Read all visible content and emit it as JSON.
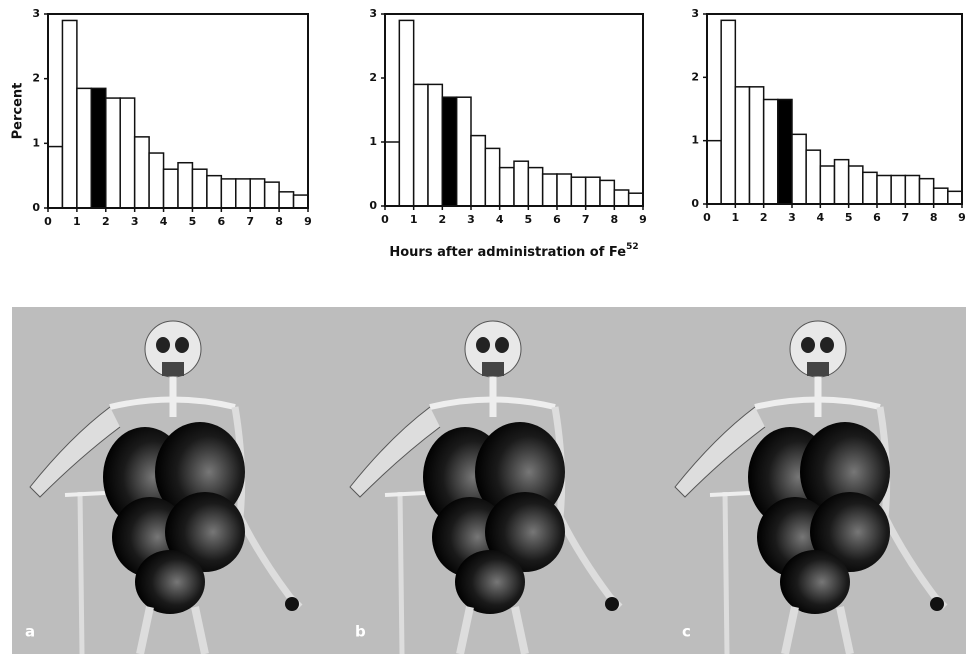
{
  "chart_data": [
    {
      "type": "histogram",
      "ylabel": "Percent",
      "bins": [
        0,
        0.5,
        1,
        1.5,
        2,
        2.5,
        3,
        3.5,
        4,
        4.5,
        5,
        5.5,
        6,
        6.5,
        7,
        7.5,
        8,
        8.5,
        9
      ],
      "values": [
        0.95,
        2.9,
        1.85,
        1.85,
        1.7,
        1.7,
        1.1,
        0.85,
        0.6,
        0.7,
        0.6,
        0.5,
        0.45,
        0.45,
        0.45,
        0.4,
        0.25,
        0.2
      ],
      "colors": [
        "#fff",
        "#fff",
        "#fff",
        "#000",
        "#fff",
        "#fff",
        "#fff",
        "#fff",
        "#fff",
        "#fff",
        "#fff",
        "#fff",
        "#fff",
        "#fff",
        "#fff",
        "#fff",
        "#fff",
        "#fff"
      ],
      "xlim": [
        0,
        9
      ],
      "xticks": [
        0,
        1,
        2,
        3,
        4,
        5,
        6,
        7,
        8,
        9
      ],
      "ylim": [
        0,
        3
      ],
      "yticks": [
        0,
        1,
        2,
        3
      ]
    },
    {
      "type": "histogram",
      "xlabel": "Hours after administration of Fe",
      "xlabel_superscript": "52",
      "bins": [
        0,
        0.5,
        1,
        1.5,
        2,
        2.5,
        3,
        3.5,
        4,
        4.5,
        5,
        5.5,
        6,
        6.5,
        7,
        7.5,
        8,
        8.5,
        9
      ],
      "values": [
        1.0,
        2.9,
        1.9,
        1.9,
        1.7,
        1.7,
        1.1,
        0.9,
        0.6,
        0.7,
        0.6,
        0.5,
        0.5,
        0.45,
        0.45,
        0.4,
        0.25,
        0.2
      ],
      "colors": [
        "#fff",
        "#fff",
        "#fff",
        "#fff",
        "#000",
        "#fff",
        "#fff",
        "#fff",
        "#fff",
        "#fff",
        "#fff",
        "#fff",
        "#fff",
        "#fff",
        "#fff",
        "#fff",
        "#fff",
        "#fff"
      ],
      "xlim": [
        0,
        9
      ],
      "xticks": [
        0,
        1,
        2,
        3,
        4,
        5,
        6,
        7,
        8,
        9
      ],
      "ylim": [
        0,
        3
      ],
      "yticks": [
        0,
        1,
        2,
        3
      ]
    },
    {
      "type": "histogram",
      "bins": [
        0,
        0.5,
        1,
        1.5,
        2,
        2.5,
        3,
        3.5,
        4,
        4.5,
        5,
        5.5,
        6,
        6.5,
        7,
        7.5,
        8,
        8.5,
        9
      ],
      "values": [
        1.0,
        2.9,
        1.85,
        1.85,
        1.65,
        1.65,
        1.1,
        0.85,
        0.6,
        0.7,
        0.6,
        0.5,
        0.45,
        0.45,
        0.45,
        0.4,
        0.25,
        0.2
      ],
      "colors": [
        "#fff",
        "#fff",
        "#fff",
        "#fff",
        "#fff",
        "#000",
        "#fff",
        "#fff",
        "#fff",
        "#fff",
        "#fff",
        "#fff",
        "#fff",
        "#fff",
        "#fff",
        "#fff",
        "#fff",
        "#fff"
      ],
      "xlim": [
        0,
        9
      ],
      "xticks": [
        0,
        1,
        2,
        3,
        4,
        5,
        6,
        7,
        8,
        9
      ],
      "ylim": [
        0,
        3
      ],
      "yticks": [
        0,
        1,
        2,
        3
      ]
    }
  ],
  "panels": [
    {
      "label": "a"
    },
    {
      "label": "b"
    },
    {
      "label": "c"
    }
  ]
}
